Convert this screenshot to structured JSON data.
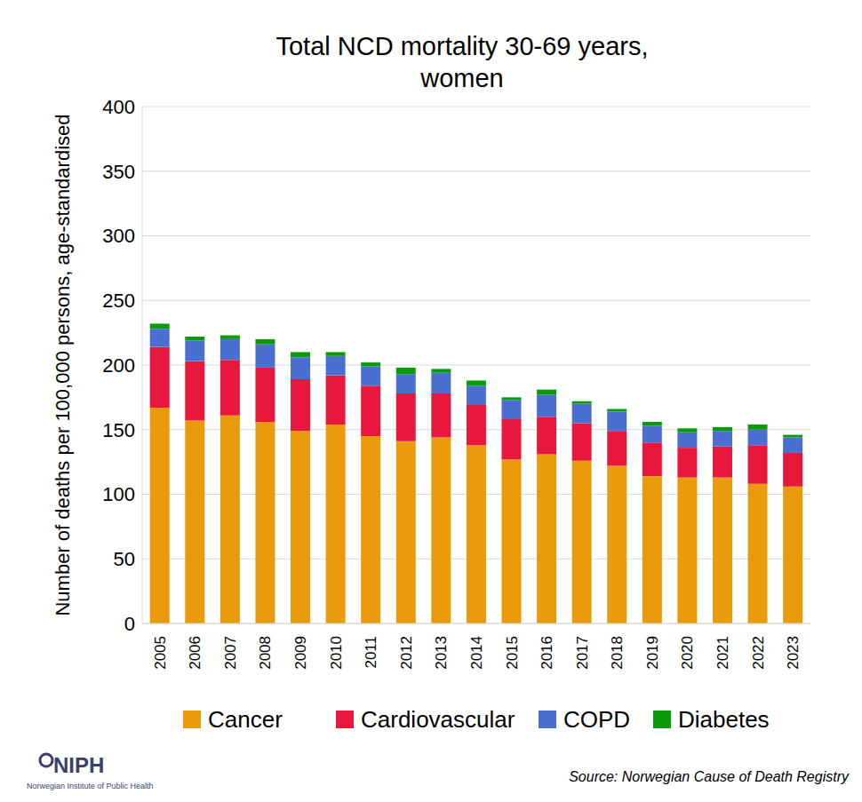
{
  "chart_data": {
    "type": "bar",
    "title": "Total NCD mortality 30-69 years,\nwomen",
    "y_label": "Number of deaths per 100,000 persons, age-standardised",
    "categories": [
      "2005",
      "2006",
      "2007",
      "2008",
      "2009",
      "2010",
      "2011",
      "2012",
      "2013",
      "2014",
      "2015",
      "2016",
      "2017",
      "2018",
      "2019",
      "2020",
      "2021",
      "2022",
      "2023"
    ],
    "series": [
      {
        "name": "Cancer",
        "color": "#e99b0c",
        "values": [
          167,
          157,
          161,
          156,
          149,
          154,
          145,
          141,
          144,
          138,
          127,
          131,
          126,
          122,
          114,
          113,
          113,
          108,
          106
        ]
      },
      {
        "name": "Cardiovascular",
        "color": "#e8173e",
        "values": [
          47,
          46,
          43,
          42,
          40,
          38,
          39,
          37,
          34,
          31,
          31,
          29,
          29,
          27,
          26,
          23,
          24,
          30,
          26
        ]
      },
      {
        "name": "COPD",
        "color": "#4a6fd1",
        "values": [
          14,
          16,
          16,
          18,
          17,
          15,
          15,
          15,
          16,
          15,
          15,
          17,
          15,
          15,
          13,
          12,
          12,
          12,
          12
        ]
      },
      {
        "name": "Diabetes",
        "color": "#0a9b0a",
        "values": [
          4,
          3,
          3,
          4,
          4,
          3,
          3,
          5,
          3,
          4,
          2,
          4,
          2,
          2,
          3,
          3,
          3,
          4,
          2
        ]
      }
    ],
    "ylim": [
      0,
      400
    ],
    "yticks": [
      0,
      50,
      100,
      150,
      200,
      250,
      300,
      350,
      400
    ],
    "stacked": true,
    "grid": true,
    "legend": "bottom",
    "annotations": [
      "Source: Norwegian Cause of Death Registry",
      "NIPH",
      "Norwegian Institute of Public Health"
    ]
  }
}
